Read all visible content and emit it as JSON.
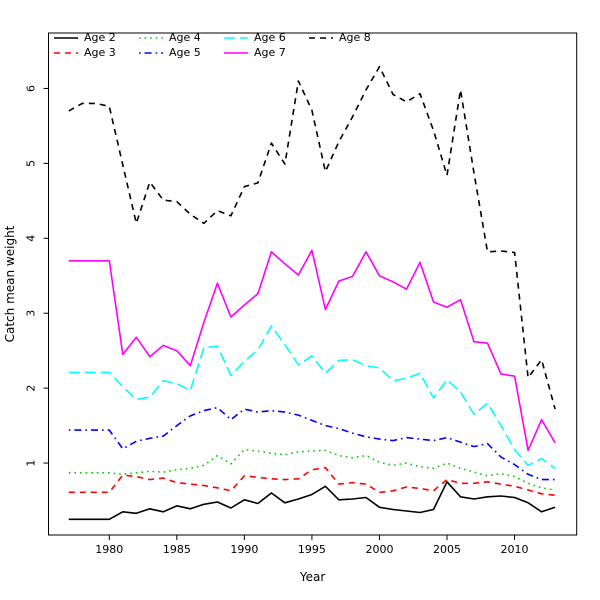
{
  "chart_data": {
    "type": "line",
    "title": "",
    "xlabel": "Year",
    "ylabel": "Catch mean weight",
    "grid": false,
    "legend_position": "top-left-inside",
    "x_ticks": [
      1980,
      1985,
      1990,
      1995,
      2000,
      2005,
      2010
    ],
    "y_ticks": [
      1,
      2,
      3,
      4,
      5,
      6
    ],
    "xlim": [
      1975.5,
      2014.6
    ],
    "ylim": [
      0.04,
      6.74
    ],
    "x": [
      1977,
      1978,
      1979,
      1980,
      1981,
      1982,
      1983,
      1984,
      1985,
      1986,
      1987,
      1988,
      1989,
      1990,
      1991,
      1992,
      1993,
      1994,
      1995,
      1996,
      1997,
      1998,
      1999,
      2000,
      2001,
      2002,
      2003,
      2004,
      2005,
      2006,
      2007,
      2008,
      2009,
      2010,
      2011,
      2012,
      2013
    ],
    "series": [
      {
        "name": "Age 2",
        "color": "#000000",
        "line_style": "solid",
        "values": [
          0.25,
          0.25,
          0.25,
          0.25,
          0.35,
          0.33,
          0.39,
          0.35,
          0.43,
          0.39,
          0.45,
          0.48,
          0.4,
          0.51,
          0.46,
          0.6,
          0.47,
          0.52,
          0.58,
          0.69,
          0.51,
          0.52,
          0.54,
          0.41,
          0.38,
          0.36,
          0.34,
          0.38,
          0.75,
          0.55,
          0.52,
          0.55,
          0.56,
          0.54,
          0.47,
          0.35,
          0.41
        ]
      },
      {
        "name": "Age 3",
        "color": "#ff0000",
        "line_style": "dashed",
        "values": [
          0.61,
          0.61,
          0.61,
          0.61,
          0.84,
          0.82,
          0.78,
          0.8,
          0.74,
          0.72,
          0.7,
          0.67,
          0.63,
          0.83,
          0.81,
          0.79,
          0.78,
          0.79,
          0.91,
          0.94,
          0.72,
          0.74,
          0.72,
          0.61,
          0.63,
          0.68,
          0.66,
          0.63,
          0.78,
          0.73,
          0.73,
          0.75,
          0.72,
          0.69,
          0.64,
          0.59,
          0.57
        ]
      },
      {
        "name": "Age 4",
        "color": "#00cc00",
        "line_style": "dotted",
        "values": [
          0.87,
          0.87,
          0.87,
          0.87,
          0.85,
          0.87,
          0.89,
          0.88,
          0.91,
          0.93,
          0.97,
          1.1,
          0.99,
          1.18,
          1.16,
          1.13,
          1.11,
          1.15,
          1.16,
          1.17,
          1.1,
          1.07,
          1.1,
          1.01,
          0.97,
          1.0,
          0.95,
          0.93,
          1.0,
          0.93,
          0.88,
          0.83,
          0.86,
          0.82,
          0.73,
          0.67,
          0.64
        ]
      },
      {
        "name": "Age 5",
        "color": "#0000ff",
        "line_style": "dotdash",
        "values": [
          1.44,
          1.44,
          1.44,
          1.44,
          1.19,
          1.29,
          1.33,
          1.36,
          1.5,
          1.63,
          1.7,
          1.74,
          1.58,
          1.72,
          1.68,
          1.7,
          1.68,
          1.64,
          1.57,
          1.5,
          1.46,
          1.4,
          1.35,
          1.32,
          1.3,
          1.34,
          1.32,
          1.3,
          1.34,
          1.28,
          1.22,
          1.26,
          1.08,
          0.98,
          0.85,
          0.78,
          0.78
        ]
      },
      {
        "name": "Age 6",
        "color": "#00ffff",
        "line_style": "longdash",
        "values": [
          2.21,
          2.21,
          2.21,
          2.21,
          2.02,
          1.85,
          1.88,
          2.1,
          2.06,
          1.97,
          2.54,
          2.56,
          2.17,
          2.36,
          2.51,
          2.83,
          2.58,
          2.31,
          2.43,
          2.2,
          2.37,
          2.38,
          2.3,
          2.27,
          2.1,
          2.13,
          2.2,
          1.87,
          2.11,
          1.95,
          1.65,
          1.8,
          1.5,
          1.18,
          0.97,
          1.06,
          0.93
        ]
      },
      {
        "name": "Age 7",
        "color": "#ff00ff",
        "line_style": "solid",
        "values": [
          3.7,
          3.7,
          3.7,
          3.7,
          2.45,
          2.68,
          2.42,
          2.57,
          2.5,
          2.3,
          2.88,
          3.4,
          2.95,
          3.11,
          3.26,
          3.82,
          3.66,
          3.51,
          3.84,
          3.05,
          3.43,
          3.49,
          3.82,
          3.5,
          3.42,
          3.32,
          3.68,
          3.15,
          3.08,
          3.18,
          2.62,
          2.6,
          2.19,
          2.16,
          1.17,
          1.58,
          1.27
        ]
      },
      {
        "name": "Age 8",
        "color": "#000000",
        "line_style": "dashed",
        "values": [
          5.7,
          5.8,
          5.8,
          5.76,
          4.98,
          4.2,
          4.75,
          4.51,
          4.49,
          4.32,
          4.2,
          4.37,
          4.3,
          4.69,
          4.74,
          5.27,
          4.99,
          6.1,
          5.71,
          4.89,
          5.29,
          5.62,
          5.98,
          6.29,
          5.92,
          5.82,
          5.93,
          5.44,
          4.84,
          5.98,
          4.87,
          3.82,
          3.83,
          3.81,
          2.14,
          2.38,
          1.72
        ]
      }
    ],
    "legend_columns": [
      [
        0,
        1
      ],
      [
        2,
        3
      ],
      [
        4,
        5
      ],
      [
        6
      ]
    ]
  }
}
